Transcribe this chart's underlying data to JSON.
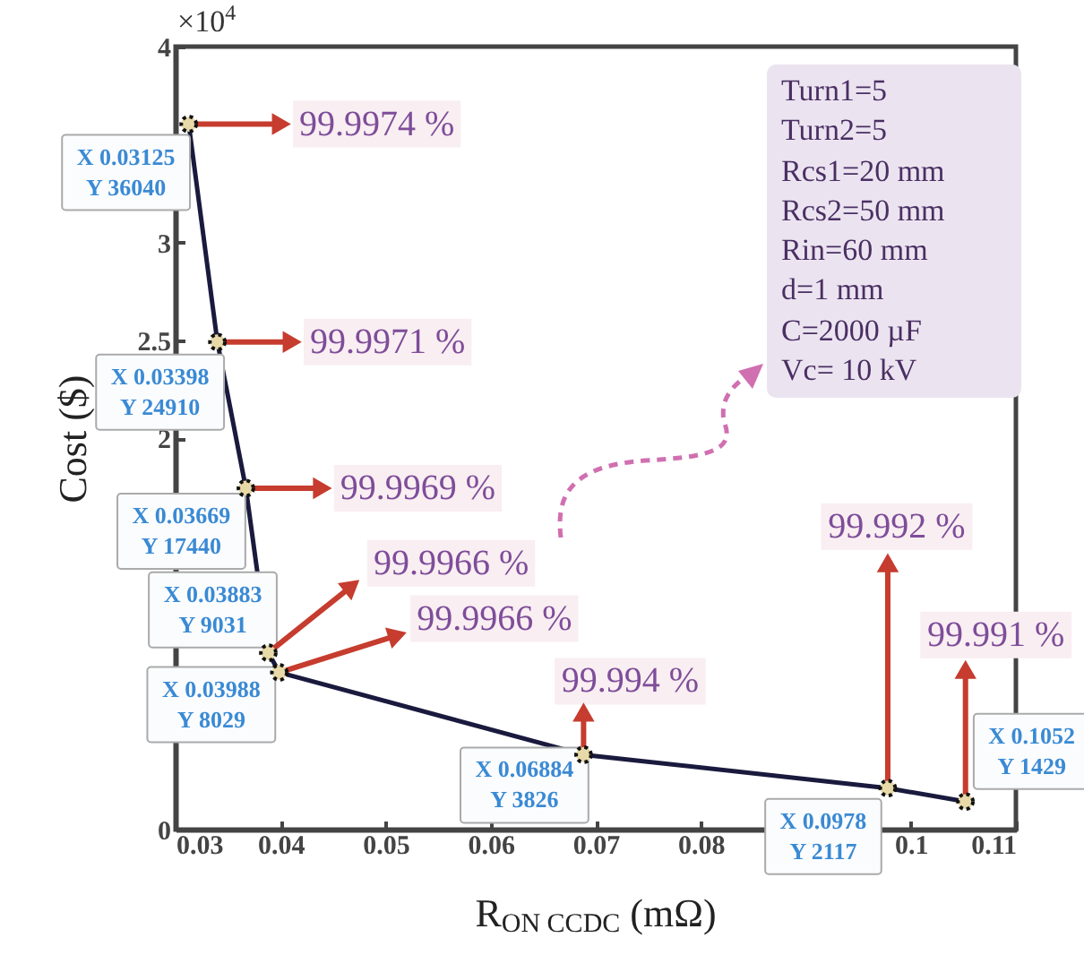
{
  "chart_data": {
    "type": "line",
    "xlabel": "R$_{ON CCDC}$ (mΩ)",
    "ylabel": "Cost ($)",
    "x": [
      0.03125,
      0.03398,
      0.03669,
      0.03883,
      0.03988,
      0.06884,
      0.0978,
      0.1052
    ],
    "series": [
      {
        "color": "#1a1a3e",
        "values": [
          3.604,
          2.491,
          1.744,
          0.9031,
          0.8029,
          0.3826,
          0.2117,
          0.1429
        ]
      }
    ],
    "xlim": [
      0.03,
      0.11
    ],
    "xticks": [
      0.03,
      0.04,
      0.05,
      0.06,
      0.07,
      0.08,
      0.1,
      0.11
    ],
    "ylim": [
      0,
      4
    ],
    "yticks": [
      0,
      {
        "value": 0.5,
        "label": null
      },
      {
        "value": 1,
        "label": null
      },
      {
        "value": 1.5,
        "label": null
      },
      2,
      2.5,
      3,
      {
        "value": 3.5,
        "label": null
      },
      4
    ],
    "marker": "circle",
    "grid": false,
    "annotations": [
      "×10$^{4}$",
      {
        "text": "X 0.03125\nY 36040",
        "x": 0.03125,
        "y": 3.604
      },
      {
        "text": "X 0.03398\nY 24910",
        "x": 0.03398,
        "y": 2.491
      },
      {
        "text": "X 0.03669\nY 17440",
        "x": 0.03669,
        "y": 1.744
      },
      {
        "text": "X 0.03883\nY 9031",
        "x": 0.03883,
        "y": 0.9031
      },
      {
        "text": "X 0.03988\nY 8029",
        "x": 0.03988,
        "y": 0.8029
      },
      {
        "text": "X 0.06884\nY 3826",
        "x": 0.06884,
        "y": 0.3826
      },
      {
        "text": "X 0.0978\nY 2117",
        "x": 0.0978,
        "y": 0.2117
      },
      {
        "text": "X 0.1052\nY 1429",
        "x": 0.1052,
        "y": 0.1429
      },
      {
        "text": "99.9974 %",
        "x": 0.03125,
        "y": 3.604
      },
      {
        "text": "99.9971 %",
        "x": 0.03398,
        "y": 2.491
      },
      {
        "text": "99.9969 %",
        "x": 0.03669,
        "y": 1.744
      },
      {
        "text": "99.9966 %",
        "x": 0.03883,
        "y": 0.9031
      },
      {
        "text": "99.9966 %",
        "x": 0.03988,
        "y": 0.8029
      },
      {
        "text": "99.994 %",
        "x": 0.06884,
        "y": 0.3826
      },
      {
        "text": "99.992 %",
        "x": 0.0978,
        "y": 0.2117
      },
      {
        "text": "99.991 %",
        "x": 0.1052,
        "y": 0.1429
      },
      "Turn1=5\nTurn2=5\nRcs1=20 mm\nRcs2=50 mm\nRin=60 mm\nd=1 mm\nC=2000 µF\nVc= 10 kV"
    ]
  }
}
